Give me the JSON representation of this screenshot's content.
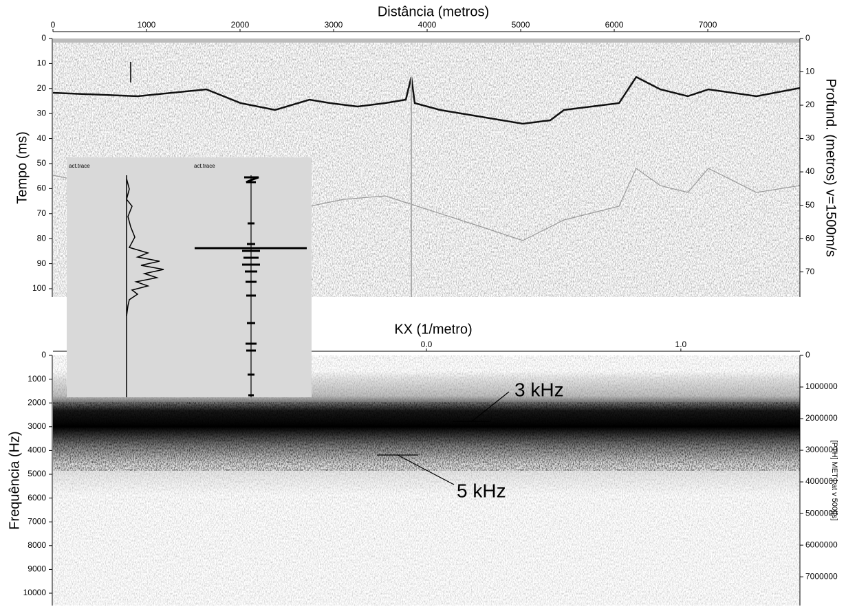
{
  "chart_data": [
    {
      "type": "seismic",
      "x_label": "Distância (metros)",
      "y_label": "Tempo (ms)",
      "y2_label": "Profund. (metros) v=1500m/s",
      "xlim": [
        0,
        7985
      ],
      "xticks": [
        0,
        1000,
        2000,
        3000,
        4000,
        5000,
        6000,
        7000
      ],
      "ylim": [
        0,
        103.3
      ],
      "yticks": [
        0,
        10,
        20,
        30,
        40,
        50,
        60,
        70,
        80,
        90,
        100
      ],
      "y2lim": [
        0,
        77.5
      ],
      "y2ticks": [
        0,
        10,
        20,
        30,
        40,
        50,
        60,
        70
      ]
    },
    {
      "type": "spectrum",
      "x_label": "KX (1/metro)",
      "y_label": "Frequência (Hz)",
      "y2_label": "[PTH] MET ] at v 500|[s]",
      "xlim": [
        -1.468,
        1.468
      ],
      "xticks": [
        {
          "value": 0,
          "label": "0.0"
        },
        {
          "value": 1,
          "label": "1.0"
        }
      ],
      "ylim": [
        0,
        10520
      ],
      "yticks": [
        0,
        1000,
        2000,
        3000,
        4000,
        5000,
        6000,
        7000,
        8000,
        9000,
        10000
      ],
      "y2lim": [
        0,
        7910000
      ],
      "y2ticks": [
        0,
        1000000,
        2000000,
        3000000,
        4000000,
        5000000,
        6000000,
        7000000
      ],
      "annotations": [
        "3 kHz",
        "5 kHz"
      ]
    }
  ],
  "inset": {
    "labels": [
      "act.trace",
      "act.trace"
    ]
  }
}
